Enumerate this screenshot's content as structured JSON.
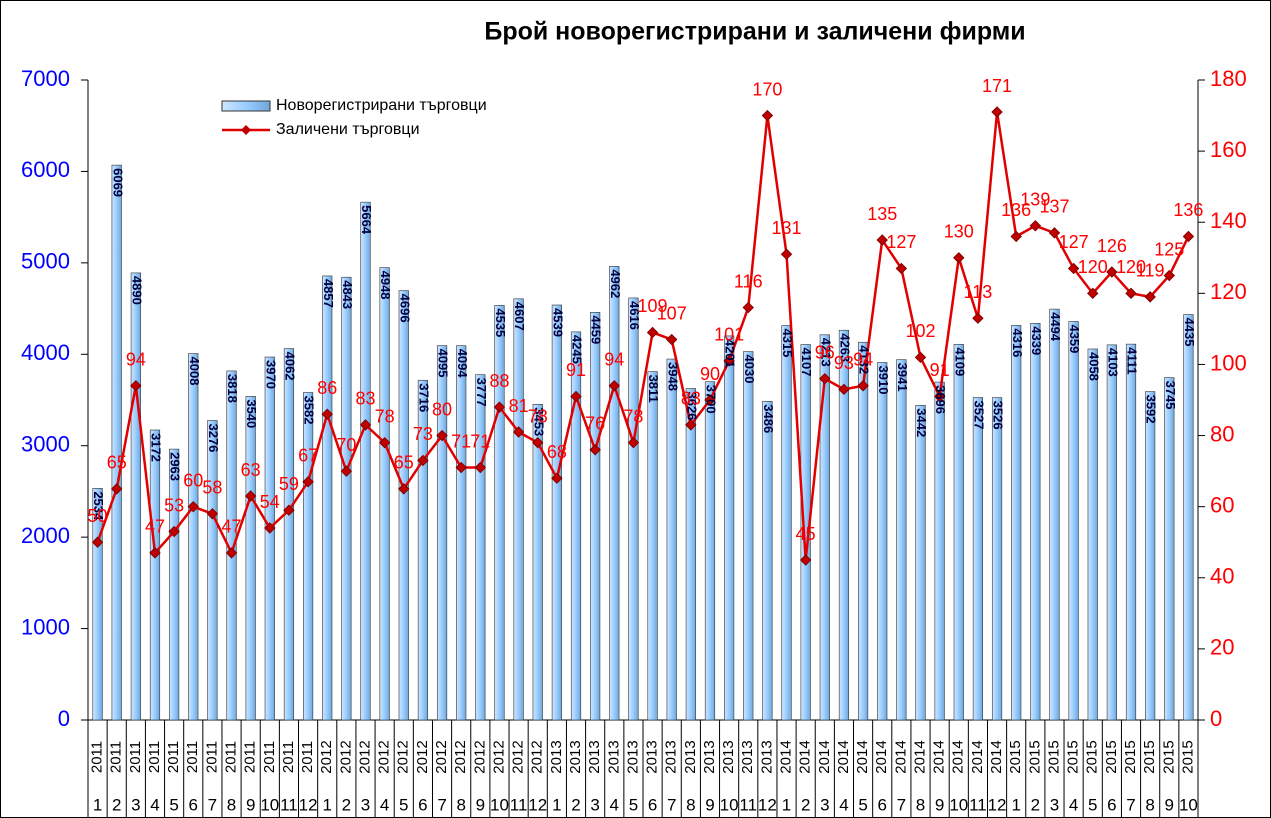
{
  "chart_data": {
    "type": "bar-line",
    "title": "Брой новорегистрирани и заличени фирми",
    "categories": [
      [
        "2011",
        "1"
      ],
      [
        "2011",
        "2"
      ],
      [
        "2011",
        "3"
      ],
      [
        "2011",
        "4"
      ],
      [
        "2011",
        "5"
      ],
      [
        "2011",
        "6"
      ],
      [
        "2011",
        "7"
      ],
      [
        "2011",
        "8"
      ],
      [
        "2011",
        "9"
      ],
      [
        "2011",
        "10"
      ],
      [
        "2011",
        "11"
      ],
      [
        "2011",
        "12"
      ],
      [
        "2012",
        "1"
      ],
      [
        "2012",
        "2"
      ],
      [
        "2012",
        "3"
      ],
      [
        "2012",
        "4"
      ],
      [
        "2012",
        "5"
      ],
      [
        "2012",
        "6"
      ],
      [
        "2012",
        "7"
      ],
      [
        "2012",
        "8"
      ],
      [
        "2012",
        "9"
      ],
      [
        "2012",
        "10"
      ],
      [
        "2012",
        "11"
      ],
      [
        "2012",
        "12"
      ],
      [
        "2013",
        "1"
      ],
      [
        "2013",
        "2"
      ],
      [
        "2013",
        "3"
      ],
      [
        "2013",
        "4"
      ],
      [
        "2013",
        "5"
      ],
      [
        "2013",
        "6"
      ],
      [
        "2013",
        "7"
      ],
      [
        "2013",
        "8"
      ],
      [
        "2013",
        "9"
      ],
      [
        "2013",
        "10"
      ],
      [
        "2013",
        "11"
      ],
      [
        "2013",
        "12"
      ],
      [
        "2014",
        "1"
      ],
      [
        "2014",
        "2"
      ],
      [
        "2014",
        "3"
      ],
      [
        "2014",
        "4"
      ],
      [
        "2014",
        "5"
      ],
      [
        "2014",
        "6"
      ],
      [
        "2014",
        "7"
      ],
      [
        "2014",
        "8"
      ],
      [
        "2014",
        "9"
      ],
      [
        "2014",
        "10"
      ],
      [
        "2014",
        "11"
      ],
      [
        "2014",
        "12"
      ],
      [
        "2015",
        "1"
      ],
      [
        "2015",
        "2"
      ],
      [
        "2015",
        "3"
      ],
      [
        "2015",
        "4"
      ],
      [
        "2015",
        "5"
      ],
      [
        "2015",
        "6"
      ],
      [
        "2015",
        "7"
      ],
      [
        "2015",
        "8"
      ],
      [
        "2015",
        "9"
      ],
      [
        "2015",
        "10"
      ]
    ],
    "series": [
      {
        "name": "Новорегистрирани търговци",
        "type": "bar",
        "color": "#99ccff",
        "axis": "y",
        "values": [
          2534,
          6069,
          4890,
          3172,
          2963,
          4008,
          3276,
          3818,
          3540,
          3970,
          4062,
          3582,
          4857,
          4843,
          5664,
          4948,
          4696,
          3716,
          4095,
          4094,
          3777,
          4535,
          4607,
          3453,
          4539,
          4245,
          4459,
          4962,
          4616,
          3811,
          3948,
          3626,
          3700,
          4201,
          4030,
          3486,
          4315,
          4107,
          4213,
          4263,
          4132,
          3910,
          3941,
          3442,
          3696,
          4109,
          3527,
          3526,
          4316,
          4339,
          4494,
          4359,
          4058,
          4103,
          4111,
          3592,
          3745,
          4435
        ]
      },
      {
        "name": "Заличени търговци",
        "type": "line",
        "color": "#e00000",
        "axis": "y2",
        "values": [
          50,
          65,
          94,
          47,
          53,
          60,
          58,
          47,
          63,
          54,
          59,
          67,
          86,
          70,
          83,
          78,
          65,
          73,
          80,
          71,
          71,
          88,
          81,
          78,
          68,
          91,
          76,
          94,
          78,
          109,
          107,
          83,
          90,
          101,
          116,
          170,
          131,
          45,
          96,
          93,
          94,
          135,
          127,
          102,
          91,
          130,
          113,
          171,
          136,
          139,
          137,
          127,
          120,
          126,
          120,
          119,
          125,
          136
        ]
      }
    ],
    "ylim": [
      0,
      7000
    ],
    "yticks": [
      0,
      1000,
      2000,
      3000,
      4000,
      5000,
      6000,
      7000
    ],
    "ycolor": "#0000ff",
    "y2lim": [
      0,
      180
    ],
    "y2ticks": [
      0,
      20,
      40,
      60,
      80,
      100,
      120,
      140,
      160,
      180
    ],
    "y2color": "#ff0000",
    "legend": "top-left",
    "grid": false
  }
}
